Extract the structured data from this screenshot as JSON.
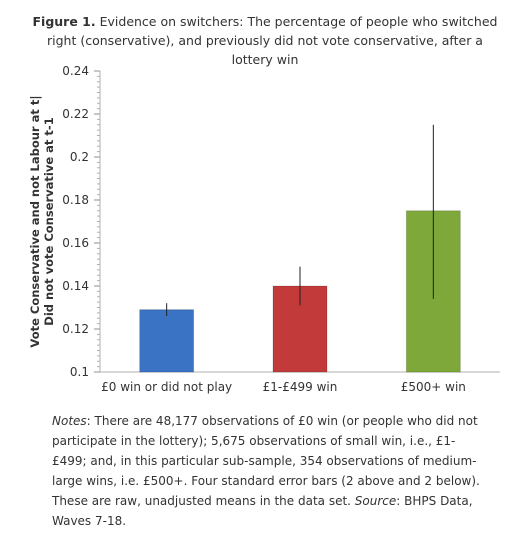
{
  "caption": {
    "figure_label": "Figure 1.",
    "text": " Evidence on switchers: The percentage of people who switched right (conservative), and previously did not vote conservative, after a lottery win"
  },
  "notes": {
    "label": "Notes",
    "body": ": There are 48,177 observations of £0 win (or people who did not participate in the lottery); 5,675 observations of small win, i.e., £1-£499; and, in this particular sub-sample, 354 observations of medium-large wins, i.e. £500+. Four standard error bars (2 above and 2 below). These are raw, unadjusted means in the data set. ",
    "source_label": "Source",
    "source_text": ": BHPS Data, Waves 7-18."
  },
  "chart_data": {
    "type": "bar",
    "categories": [
      "£0 win or did not play",
      "£1-£499 win",
      "£500+ win"
    ],
    "values": [
      0.129,
      0.14,
      0.175
    ],
    "error_low": [
      0.126,
      0.131,
      0.134
    ],
    "error_high": [
      0.132,
      0.149,
      0.215
    ],
    "bar_colors": [
      "#3a73c3",
      "#c23a3a",
      "#7fa83a"
    ],
    "ylabel_line1": "Vote Conservative and not Labour at t|",
    "ylabel_line2": "Did not vote Conservative at t-1",
    "ylim": [
      0.1,
      0.24
    ],
    "yticks": [
      "0.1",
      "0.12",
      "0.14",
      "0.16",
      "0.18",
      "0.2",
      "0.22",
      "0.24"
    ],
    "ytick_values": [
      0.1,
      0.12,
      0.14,
      0.16,
      0.18,
      0.2,
      0.22,
      0.24
    ],
    "grid": false,
    "legend": "none"
  }
}
